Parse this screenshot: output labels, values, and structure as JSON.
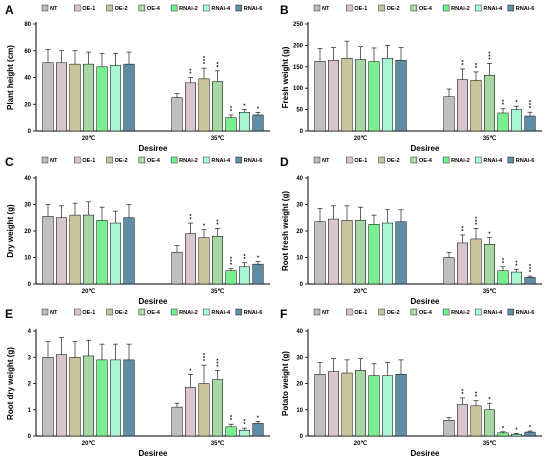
{
  "legend": [
    "NT",
    "OE-1",
    "OE-2",
    "OE-4",
    "RNAi-2",
    "RNAi-4",
    "RNAi-6"
  ],
  "colors": {
    "NT": "#bfbfbf",
    "OE-1": "#d8c6cc",
    "OE-2": "#c9c69d",
    "OE-4": "#a9d6a6",
    "RNAi-2": "#79f08f",
    "RNAi-4": "#aaf5d3",
    "RNAi-6": "#5f8da6"
  },
  "chart_data": [
    {
      "panel": "A",
      "type": "bar",
      "ylabel": "Plant height (cm)",
      "xlabel": "Desiree",
      "categories": [
        "20℃",
        "35℃"
      ],
      "ylim": [
        0,
        80
      ],
      "yticks": [
        0,
        20,
        40,
        60,
        80
      ],
      "series": [
        {
          "name": "NT",
          "values": [
            51,
            25
          ],
          "errors": [
            10,
            3
          ],
          "sig": [
            "",
            ""
          ]
        },
        {
          "name": "OE-1",
          "values": [
            51,
            36
          ],
          "errors": [
            9,
            4
          ],
          "sig": [
            "",
            "**"
          ]
        },
        {
          "name": "OE-2",
          "values": [
            50,
            39
          ],
          "errors": [
            10,
            8
          ],
          "sig": [
            "",
            "***"
          ]
        },
        {
          "name": "OE-4",
          "values": [
            50,
            37
          ],
          "errors": [
            9,
            8
          ],
          "sig": [
            "",
            "**"
          ]
        },
        {
          "name": "RNAi-2",
          "values": [
            48,
            10
          ],
          "errors": [
            10,
            2
          ],
          "sig": [
            "",
            "**"
          ]
        },
        {
          "name": "RNAi-4",
          "values": [
            49,
            14
          ],
          "errors": [
            9,
            2
          ],
          "sig": [
            "",
            "*"
          ]
        },
        {
          "name": "RNAi-6",
          "values": [
            50,
            12
          ],
          "errors": [
            9,
            2
          ],
          "sig": [
            "",
            "*"
          ]
        }
      ]
    },
    {
      "panel": "B",
      "type": "bar",
      "ylabel": "Fresh weight (g)",
      "xlabel": "Desiree",
      "categories": [
        "20℃",
        "35℃"
      ],
      "ylim": [
        0,
        250
      ],
      "yticks": [
        0,
        50,
        100,
        150,
        200,
        250
      ],
      "series": [
        {
          "name": "NT",
          "values": [
            163,
            80
          ],
          "errors": [
            30,
            18
          ],
          "sig": [
            "",
            ""
          ]
        },
        {
          "name": "OE-1",
          "values": [
            165,
            120
          ],
          "errors": [
            30,
            25
          ],
          "sig": [
            "",
            "**"
          ]
        },
        {
          "name": "OE-2",
          "values": [
            170,
            118
          ],
          "errors": [
            40,
            20
          ],
          "sig": [
            "",
            "**"
          ]
        },
        {
          "name": "OE-4",
          "values": [
            167,
            130
          ],
          "errors": [
            30,
            28
          ],
          "sig": [
            "",
            "***"
          ]
        },
        {
          "name": "RNAi-2",
          "values": [
            162,
            42
          ],
          "errors": [
            32,
            10
          ],
          "sig": [
            "",
            "**"
          ]
        },
        {
          "name": "RNAi-4",
          "values": [
            170,
            50
          ],
          "errors": [
            30,
            8
          ],
          "sig": [
            "",
            "*"
          ]
        },
        {
          "name": "RNAi-6",
          "values": [
            165,
            35
          ],
          "errors": [
            30,
            9
          ],
          "sig": [
            "",
            "***"
          ]
        }
      ]
    },
    {
      "panel": "C",
      "type": "bar",
      "ylabel": "Dry weight (g)",
      "xlabel": "Desiree",
      "categories": [
        "20℃",
        "35℃"
      ],
      "ylim": [
        0,
        40
      ],
      "yticks": [
        0,
        10,
        20,
        30,
        40
      ],
      "series": [
        {
          "name": "NT",
          "values": [
            25.5,
            12
          ],
          "errors": [
            4.5,
            2.5
          ],
          "sig": [
            "",
            ""
          ]
        },
        {
          "name": "OE-1",
          "values": [
            25,
            19
          ],
          "errors": [
            4.5,
            4
          ],
          "sig": [
            "",
            "**"
          ]
        },
        {
          "name": "OE-2",
          "values": [
            26,
            17.5
          ],
          "errors": [
            4.5,
            3
          ],
          "sig": [
            "",
            "*"
          ]
        },
        {
          "name": "OE-4",
          "values": [
            26,
            18
          ],
          "errors": [
            5,
            3
          ],
          "sig": [
            "",
            "**"
          ]
        },
        {
          "name": "RNAi-2",
          "values": [
            24,
            5
          ],
          "errors": [
            5,
            0.8
          ],
          "sig": [
            "",
            "***"
          ]
        },
        {
          "name": "RNAi-4",
          "values": [
            23,
            6.5
          ],
          "errors": [
            4.5,
            1.5
          ],
          "sig": [
            "",
            "**"
          ]
        },
        {
          "name": "RNAi-6",
          "values": [
            25,
            7.5
          ],
          "errors": [
            5,
            1
          ],
          "sig": [
            "",
            "*"
          ]
        }
      ]
    },
    {
      "panel": "D",
      "type": "bar",
      "ylabel": "Root fresh weight (g)",
      "xlabel": "Desiree",
      "categories": [
        "20℃",
        "35℃"
      ],
      "ylim": [
        0,
        40
      ],
      "yticks": [
        0,
        10,
        20,
        30,
        40
      ],
      "series": [
        {
          "name": "NT",
          "values": [
            23.5,
            10
          ],
          "errors": [
            5,
            2
          ],
          "sig": [
            "",
            ""
          ]
        },
        {
          "name": "OE-1",
          "values": [
            24.5,
            15.5
          ],
          "errors": [
            5,
            3
          ],
          "sig": [
            "",
            "**"
          ]
        },
        {
          "name": "OE-2",
          "values": [
            24,
            17
          ],
          "errors": [
            5.5,
            4
          ],
          "sig": [
            "",
            "***"
          ]
        },
        {
          "name": "OE-4",
          "values": [
            24,
            15
          ],
          "errors": [
            5,
            2.5
          ],
          "sig": [
            "",
            "*"
          ]
        },
        {
          "name": "RNAi-2",
          "values": [
            22.5,
            5
          ],
          "errors": [
            3.5,
            1.5
          ],
          "sig": [
            "",
            "**"
          ]
        },
        {
          "name": "RNAi-4",
          "values": [
            23,
            4.5
          ],
          "errors": [
            5,
            1
          ],
          "sig": [
            "",
            "**"
          ]
        },
        {
          "name": "RNAi-6",
          "values": [
            23.5,
            2.5
          ],
          "errors": [
            4.5,
            0.5
          ],
          "sig": [
            "",
            "***"
          ]
        }
      ]
    },
    {
      "panel": "E",
      "type": "bar",
      "ylabel": "Root dry weight (g)",
      "xlabel": "Desiree",
      "categories": [
        "20℃",
        "35℃"
      ],
      "ylim": [
        0,
        4
      ],
      "yticks": [
        0,
        1,
        2,
        3,
        4
      ],
      "series": [
        {
          "name": "NT",
          "values": [
            3.0,
            1.1
          ],
          "errors": [
            0.6,
            0.15
          ],
          "sig": [
            "",
            ""
          ]
        },
        {
          "name": "OE-1",
          "values": [
            3.1,
            1.85
          ],
          "errors": [
            0.65,
            0.5
          ],
          "sig": [
            "",
            "*"
          ]
        },
        {
          "name": "OE-2",
          "values": [
            3.0,
            2.0
          ],
          "errors": [
            0.6,
            0.7
          ],
          "sig": [
            "",
            "***"
          ]
        },
        {
          "name": "OE-4",
          "values": [
            3.05,
            2.15
          ],
          "errors": [
            0.6,
            0.35
          ],
          "sig": [
            "",
            "***"
          ]
        },
        {
          "name": "RNAi-2",
          "values": [
            2.9,
            0.35
          ],
          "errors": [
            0.6,
            0.1
          ],
          "sig": [
            "",
            "**"
          ]
        },
        {
          "name": "RNAi-4",
          "values": [
            2.9,
            0.22
          ],
          "errors": [
            0.6,
            0.08
          ],
          "sig": [
            "",
            "**"
          ]
        },
        {
          "name": "RNAi-6",
          "values": [
            2.9,
            0.48
          ],
          "errors": [
            0.6,
            0.08
          ],
          "sig": [
            "",
            "*"
          ]
        }
      ]
    },
    {
      "panel": "F",
      "type": "bar",
      "ylabel": "Potato weight (g)",
      "xlabel": "Desiree",
      "categories": [
        "20℃",
        "35℃"
      ],
      "ylim": [
        0,
        40
      ],
      "yticks": [
        0,
        10,
        20,
        30,
        40
      ],
      "series": [
        {
          "name": "NT",
          "values": [
            23.5,
            6
          ],
          "errors": [
            4.5,
            1
          ],
          "sig": [
            "",
            ""
          ]
        },
        {
          "name": "OE-1",
          "values": [
            24.5,
            12
          ],
          "errors": [
            5,
            2.5
          ],
          "sig": [
            "",
            "**"
          ]
        },
        {
          "name": "OE-2",
          "values": [
            24,
            11.5
          ],
          "errors": [
            5,
            2
          ],
          "sig": [
            "",
            "**"
          ]
        },
        {
          "name": "OE-4",
          "values": [
            25,
            10
          ],
          "errors": [
            4.5,
            2.5
          ],
          "sig": [
            "",
            "*"
          ]
        },
        {
          "name": "RNAi-2",
          "values": [
            23,
            1.2
          ],
          "errors": [
            4.5,
            0.4
          ],
          "sig": [
            "",
            "*"
          ]
        },
        {
          "name": "RNAi-4",
          "values": [
            23,
            0.7
          ],
          "errors": [
            5,
            0.3
          ],
          "sig": [
            "",
            "*"
          ]
        },
        {
          "name": "RNAi-6",
          "values": [
            23.5,
            1.5
          ],
          "errors": [
            5.5,
            0.4
          ],
          "sig": [
            "",
            "*"
          ]
        }
      ]
    }
  ]
}
